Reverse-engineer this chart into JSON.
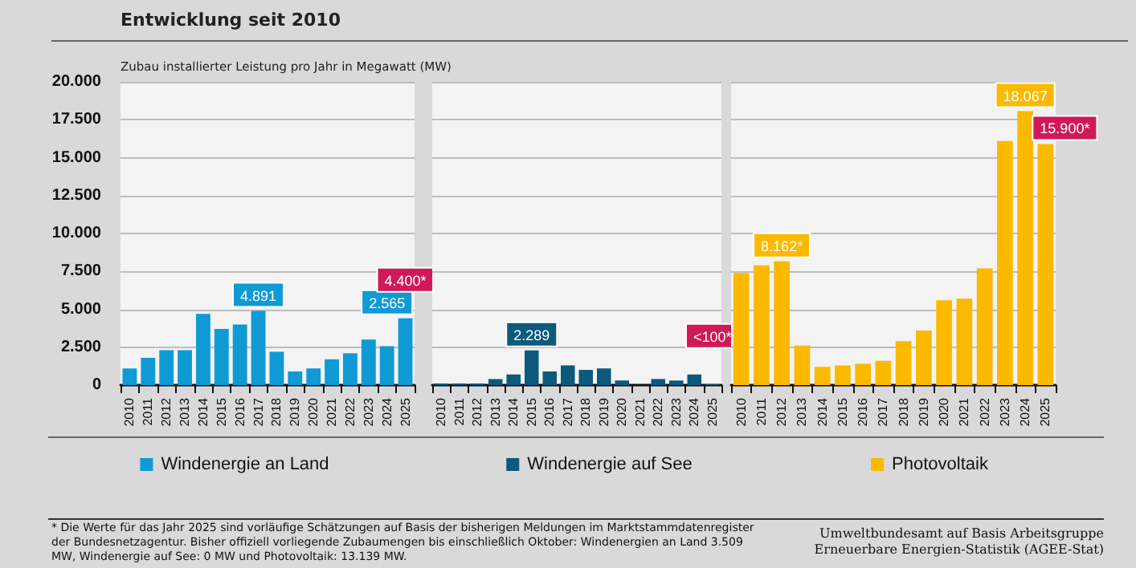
{
  "chart_data": [
    {
      "type": "bar",
      "subtitle": "Entwicklung seit 2010",
      "ylabel": "Zubau installierter Leistung pro Jahr in Megawatt (MW)",
      "categories": [
        "2010",
        "2011",
        "2012",
        "2013",
        "2014",
        "2015",
        "2016",
        "2017",
        "2018",
        "2019",
        "2020",
        "2021",
        "2022",
        "2023",
        "2024",
        "2025"
      ],
      "series": [
        {
          "name": "Windenergie an Land",
          "color": "#0f9ad6",
          "values": [
            1100,
            1800,
            2300,
            2300,
            4700,
            3700,
            4000,
            4891,
            2200,
            900,
            1100,
            1700,
            2100,
            3000,
            2565,
            4400
          ],
          "value_labels": [
            null,
            null,
            null,
            null,
            null,
            null,
            null,
            "4.891",
            null,
            null,
            null,
            null,
            null,
            null,
            "2.565",
            "4.400*"
          ]
        }
      ],
      "ylim": [
        0,
        20000
      ],
      "yticks": [
        0,
        {
          "value": 2500,
          "label": "2.500"
        },
        {
          "value": 5000,
          "label": "5.000"
        },
        {
          "value": 7500,
          "label": "7.500"
        },
        {
          "value": 10000,
          "label": "10.000"
        },
        {
          "value": 12500,
          "label": "12.500"
        },
        {
          "value": 15000,
          "label": "15.000"
        },
        {
          "value": 17500,
          "label": "17.500"
        },
        {
          "value": 20000,
          "label": "20.000"
        }
      ],
      "grid": "y",
      "legend": "bottom",
      "annotations": [
        "* Die Werte für das Jahr 2025 sind vorläufige Schätzungen auf Basis der bisherigen Meldungen im Marktstammdatenregister der Bundesnetzagentur. Bisher offiziell vorliegende Zubaumengen bis einschließlich Oktober: Windenergien an Land 3.509 MW, Windenergie auf See: 0 MW und Photovoltaik: 13.139 MW.",
        "Umweltbundesamt auf Basis Arbeitsgruppe Erneuerbare Energien-Statistik (AGEE-Stat)"
      ]
    },
    {
      "type": "bar",
      "categories": [
        "2010",
        "2011",
        "2012",
        "2013",
        "2014",
        "2015",
        "2016",
        "2017",
        "2018",
        "2019",
        "2020",
        "2021",
        "2022",
        "2023",
        "2024",
        "2025"
      ],
      "series": [
        {
          "name": "Windenergie auf See",
          "color": "#0b5a7c",
          "values": [
            100,
            100,
            100,
            400,
            700,
            2289,
            900,
            1300,
            1000,
            1100,
            300,
            0,
            400,
            300,
            700,
            50
          ],
          "value_labels": [
            null,
            null,
            null,
            null,
            null,
            "2.289",
            null,
            null,
            null,
            null,
            null,
            null,
            null,
            null,
            null,
            "<100*"
          ]
        }
      ],
      "ylim": [
        0,
        20000
      ],
      "yticks": [
        0,
        2500,
        5000,
        7500,
        10000,
        12500,
        15000,
        17500,
        20000
      ],
      "grid": "y",
      "legend": "bottom",
      "tick_labels": "x"
    },
    {
      "type": "bar",
      "categories": [
        "2010",
        "2011",
        "2012",
        "2013",
        "2014",
        "2015",
        "2016",
        "2017",
        "2018",
        "2019",
        "2020",
        "2021",
        "2022",
        "2023",
        "2024",
        "2025"
      ],
      "series": [
        {
          "name": "Photovoltaik",
          "color": "#fbb900",
          "values": [
            7400,
            7900,
            8162,
            2600,
            1200,
            1300,
            1400,
            1600,
            2900,
            3600,
            5600,
            5700,
            7700,
            16100,
            18067,
            15900
          ],
          "value_labels": [
            null,
            null,
            "8.162*",
            null,
            null,
            null,
            null,
            null,
            null,
            null,
            null,
            null,
            null,
            null,
            "18.067",
            "15.900*"
          ]
        }
      ],
      "ylim": [
        0,
        20000
      ],
      "yticks": [
        0,
        2500,
        5000,
        7500,
        10000,
        12500,
        15000,
        17500,
        20000
      ],
      "grid": "y",
      "legend": "bottom",
      "tick_labels": "x"
    }
  ]
}
